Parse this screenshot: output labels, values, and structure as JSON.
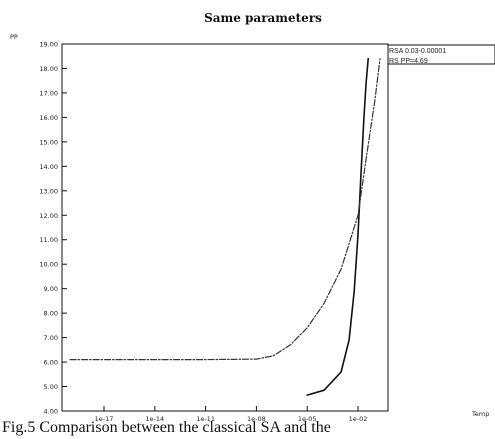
{
  "chart_data": {
    "type": "line",
    "title": "Same parameters",
    "ylabel": "PP",
    "xlabel": "Temp",
    "x_scale": "log",
    "y_ticks": [
      "4.00",
      "5.00",
      "6.00",
      "7.00",
      "8.00",
      "9.00",
      "10.00",
      "11.00",
      "12.00",
      "13.00",
      "14.00",
      "15.00",
      "16.00",
      "17.00",
      "18.00",
      "19.00"
    ],
    "x_ticks": [
      "1e-17",
      "1e-14",
      "1e-11",
      "1e-08",
      "1e-05",
      "1e-02"
    ],
    "ylim": [
      4,
      19
    ],
    "legend": [
      "RSA 0.03-0.00001",
      "RS PP=4.69"
    ],
    "series": [
      {
        "name": "RSA 0.03-0.00001",
        "x": [
          1e-05,
          0.0001,
          0.001,
          0.003,
          0.006,
          0.01,
          0.015,
          0.022,
          0.03,
          0.04
        ],
        "y": [
          4.65,
          4.85,
          5.6,
          6.9,
          8.9,
          11.2,
          13.7,
          15.9,
          17.4,
          18.4
        ]
      },
      {
        "name": "RS PP=4.69",
        "x": [
          1e-19,
          1e-17,
          1e-14,
          1e-11,
          1e-08,
          1e-07,
          1e-06,
          1e-05,
          0.0001,
          0.001,
          0.01,
          0.03,
          0.1,
          0.2
        ],
        "y": [
          6.1,
          6.1,
          6.1,
          6.1,
          6.12,
          6.25,
          6.7,
          7.4,
          8.4,
          9.8,
          12.0,
          14.3,
          16.7,
          18.4
        ]
      }
    ]
  },
  "caption": "Fig.5 Comparison between the classical SA and the"
}
